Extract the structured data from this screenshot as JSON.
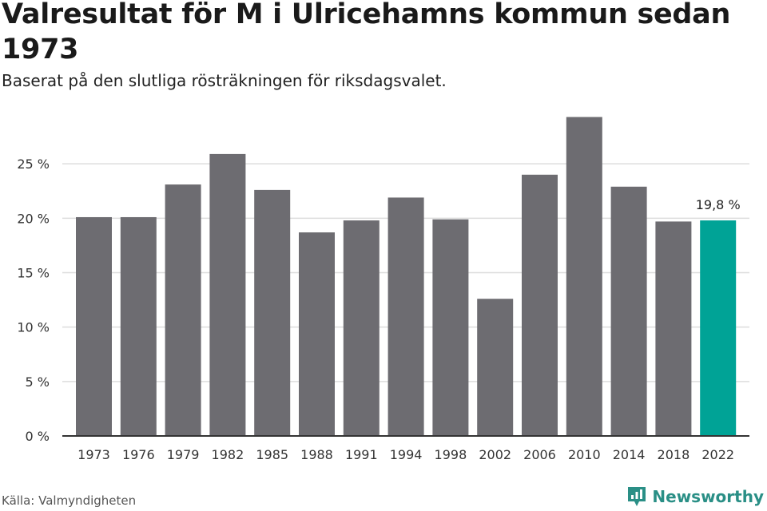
{
  "title": "Valresultat för M i Ulricehamns kommun sedan 1973",
  "subtitle": "Baserat på den slutliga rösträkningen för riksdagsvalet.",
  "source": "Källa: Valmyndigheten",
  "brand": {
    "name": "Newsworthy",
    "icon": "newsworthy-logo-icon",
    "color": "#2a8f86"
  },
  "chart_data": {
    "type": "bar",
    "categories": [
      "1973",
      "1976",
      "1979",
      "1982",
      "1985",
      "1988",
      "1991",
      "1994",
      "1998",
      "2002",
      "2006",
      "2010",
      "2014",
      "2018",
      "2022"
    ],
    "values": [
      20.1,
      20.1,
      23.1,
      25.9,
      22.6,
      18.7,
      19.8,
      21.9,
      19.9,
      12.6,
      24.0,
      29.3,
      22.9,
      19.7,
      19.8
    ],
    "ylim": [
      0,
      30
    ],
    "yticks": [
      0,
      5,
      10,
      15,
      20,
      25
    ],
    "ytick_labels": [
      "0 %",
      "5 %",
      "10 %",
      "15 %",
      "20 %",
      "25 %"
    ],
    "highlight_index": 14,
    "highlight_label": "19,8 %",
    "colors": {
      "bar": "#6d6c71",
      "highlight": "#00a396",
      "grid": "#dddddd",
      "axis": "#333333"
    },
    "grid": true,
    "xlabel": "",
    "ylabel": ""
  }
}
